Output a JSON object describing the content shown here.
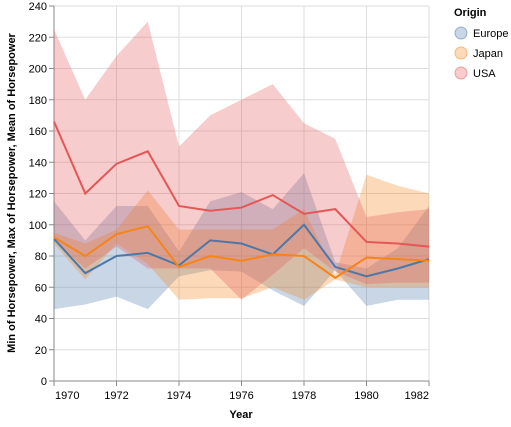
{
  "chart_data": {
    "type": "errorband-line",
    "x_label": "Year",
    "y_label": "Min of Horsepower, Max of Horsepower, Mean of Horsepower",
    "x": [
      1970,
      1971,
      1972,
      1973,
      1974,
      1975,
      1976,
      1977,
      1978,
      1979,
      1980,
      1981,
      1982
    ],
    "xlim": [
      1970,
      1982
    ],
    "xticks": [
      1970,
      1972,
      1974,
      1976,
      1978,
      1980,
      1982
    ],
    "ylim": [
      0,
      240
    ],
    "yticks": [
      0,
      20,
      40,
      60,
      80,
      100,
      120,
      140,
      160,
      180,
      200,
      220,
      240
    ],
    "grid": true,
    "legend_title": "Origin",
    "legend_position": "right",
    "series": [
      {
        "name": "Europe",
        "color": "#4c78a8",
        "values": [
          91,
          69,
          80,
          82,
          74,
          90,
          88,
          81,
          100,
          73,
          67,
          72,
          78
        ],
        "min": [
          46,
          49,
          54,
          46,
          67,
          71,
          70,
          58,
          48,
          71,
          48,
          52,
          52
        ],
        "max": [
          115,
          90,
          112,
          112,
          83,
          115,
          121,
          110,
          133,
          76,
          72,
          85,
          112
        ]
      },
      {
        "name": "Japan",
        "color": "#f58518",
        "values": [
          92,
          80,
          94,
          99,
          73,
          80,
          77,
          81,
          80,
          66,
          79,
          78,
          77
        ],
        "min": [
          88,
          65,
          88,
          75,
          52,
          53,
          53,
          60,
          52,
          65,
          60,
          60,
          60
        ],
        "max": [
          95,
          88,
          97,
          122,
          97,
          97,
          97,
          97,
          110,
          68,
          132,
          125,
          120
        ]
      },
      {
        "name": "USA",
        "color": "#e45756",
        "values": [
          166,
          120,
          139,
          147,
          112,
          109,
          111,
          119,
          107,
          110,
          89,
          88,
          86
        ],
        "min": [
          90,
          72,
          86,
          72,
          72,
          72,
          52,
          68,
          85,
          70,
          62,
          63,
          63
        ],
        "max": [
          225,
          180,
          208,
          230,
          150,
          170,
          180,
          190,
          165,
          155,
          105,
          108,
          110
        ]
      }
    ]
  }
}
